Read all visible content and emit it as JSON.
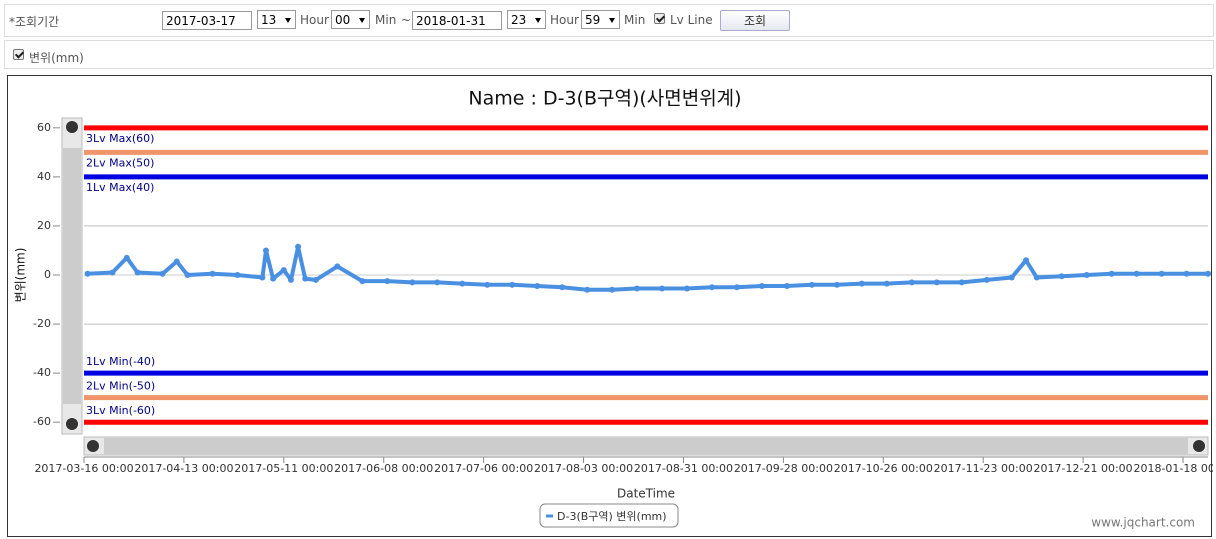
{
  "form": {
    "period_label": "*조회기간",
    "start_date": "2017-03-17",
    "start_hour": "13",
    "hour_label": "Hour",
    "start_min": "00",
    "min_label": "Min",
    "tilde": "~",
    "end_date": "2018-01-31",
    "end_hour": "23",
    "end_min": "59",
    "lv_line_label": "Lv Line",
    "search_button": "조회",
    "displacement_label": "변위(mm)"
  },
  "chart_data": {
    "type": "line",
    "title": "Name : D-3(B구역)(사면변위계)",
    "x_label": "DateTime",
    "y_label": "변위(mm)",
    "watermark": "www.jqchart.com",
    "xlim": [
      "2017-03-16 00:00",
      "2018-01-25 00:00"
    ],
    "xticks": [
      "2017-03-16 00:00",
      "2017-04-13 00:00",
      "2017-05-11 00:00",
      "2017-06-08 00:00",
      "2017-07-06 00:00",
      "2017-08-03 00:00",
      "2017-08-31 00:00",
      "2017-09-28 00:00",
      "2017-10-26 00:00",
      "2017-11-23 00:00",
      "2017-12-21 00:00",
      "2018-01-18 00:00"
    ],
    "ylim": [
      -64,
      64
    ],
    "yticks": [
      -60,
      -40,
      -20,
      0,
      20,
      40,
      60
    ],
    "grid": true,
    "lv_lines": [
      {
        "label": "3Lv Max(60)",
        "value": 60,
        "color": "#ff0000"
      },
      {
        "label": "2Lv Max(50)",
        "value": 50,
        "color": "#f0956a"
      },
      {
        "label": "1Lv Max(40)",
        "value": 40,
        "color": "#0000e0"
      },
      {
        "label": "1Lv Min(-40)",
        "value": -40,
        "color": "#0000e0"
      },
      {
        "label": "2Lv Min(-50)",
        "value": -50,
        "color": "#f0956a"
      },
      {
        "label": "3Lv Min(-60)",
        "value": -60,
        "color": "#ff0000"
      }
    ],
    "series": [
      {
        "name": "D-3(B구역) 변위(mm)",
        "color": "#4a90e2",
        "x": [
          "2017-03-17",
          "2017-03-24",
          "2017-03-28",
          "2017-03-31",
          "2017-04-07",
          "2017-04-11",
          "2017-04-14",
          "2017-04-21",
          "2017-04-28",
          "2017-05-05",
          "2017-05-06",
          "2017-05-08",
          "2017-05-11",
          "2017-05-13",
          "2017-05-15",
          "2017-05-17",
          "2017-05-20",
          "2017-05-26",
          "2017-06-02",
          "2017-06-09",
          "2017-06-16",
          "2017-06-23",
          "2017-06-30",
          "2017-07-07",
          "2017-07-14",
          "2017-07-21",
          "2017-07-28",
          "2017-08-04",
          "2017-08-11",
          "2017-08-18",
          "2017-08-25",
          "2017-09-01",
          "2017-09-08",
          "2017-09-15",
          "2017-09-22",
          "2017-09-29",
          "2017-10-06",
          "2017-10-13",
          "2017-10-20",
          "2017-10-27",
          "2017-11-03",
          "2017-11-10",
          "2017-11-17",
          "2017-11-24",
          "2017-12-01",
          "2017-12-05",
          "2017-12-08",
          "2017-12-15",
          "2017-12-22",
          "2017-12-29",
          "2018-01-05",
          "2018-01-12",
          "2018-01-19",
          "2018-01-25"
        ],
        "values": [
          0.5,
          1,
          7,
          1,
          0.5,
          5.5,
          0,
          0.5,
          0,
          -1,
          10,
          -1.5,
          2,
          -2,
          11.5,
          -1.5,
          -2,
          3.5,
          -2.5,
          -2.5,
          -3,
          -3,
          -3.5,
          -4,
          -4,
          -4.5,
          -5,
          -6,
          -6,
          -5.5,
          -5.5,
          -5.5,
          -5,
          -5,
          -4.5,
          -4.5,
          -4,
          -4,
          -3.5,
          -3.5,
          -3,
          -3,
          -3,
          -2,
          -1,
          6,
          -1,
          -0.5,
          0,
          0.5,
          0.5,
          0.5,
          0.5,
          0.5
        ]
      }
    ]
  }
}
